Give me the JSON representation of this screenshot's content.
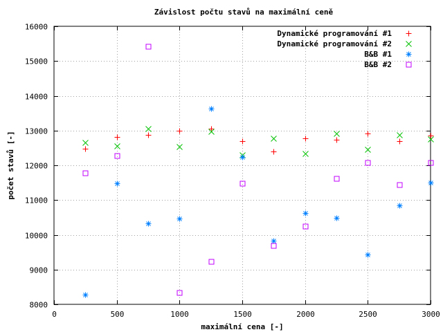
{
  "chart_data": {
    "type": "scatter",
    "title": "Závislost počtu stavů na maximální ceně",
    "xlabel": "maximální cena [-]",
    "ylabel": "počet stavů [-]",
    "xlim": [
      0,
      3000
    ],
    "ylim": [
      8000,
      16000
    ],
    "xticks": [
      0,
      500,
      1000,
      1500,
      2000,
      2500,
      3000
    ],
    "yticks": [
      8000,
      9000,
      10000,
      11000,
      12000,
      13000,
      14000,
      15000,
      16000
    ],
    "grid": true,
    "legend_position": "top-right",
    "series": [
      {
        "name": "Dynamické programování #1",
        "marker": "plus",
        "color": "#ff0000",
        "x": [
          250,
          500,
          750,
          1000,
          1250,
          1500,
          1750,
          2000,
          2250,
          2500,
          2750,
          3000
        ],
        "y": [
          12480,
          12820,
          12880,
          13000,
          13050,
          12700,
          12400,
          12780,
          12740,
          12920,
          12700,
          12850
        ]
      },
      {
        "name": "Dynamické programování #2",
        "marker": "cross",
        "color": "#00c000",
        "x": [
          250,
          500,
          750,
          1000,
          1250,
          1500,
          1750,
          2000,
          2250,
          2500,
          2750,
          3000
        ],
        "y": [
          12650,
          12550,
          13050,
          12540,
          12980,
          12300,
          12780,
          12340,
          12920,
          12460,
          12880,
          12760
        ]
      },
      {
        "name": "B&B #1",
        "marker": "star",
        "color": "#0080ff",
        "x": [
          250,
          500,
          750,
          1000,
          1250,
          1500,
          1750,
          2000,
          2250,
          2500,
          2750,
          3000
        ],
        "y": [
          8270,
          11480,
          10330,
          10460,
          13630,
          12240,
          9830,
          10630,
          10490,
          9430,
          10850,
          11500
        ]
      },
      {
        "name": "B&B #2",
        "marker": "square",
        "color": "#c000ff",
        "x": [
          250,
          500,
          750,
          1000,
          1250,
          1500,
          1750,
          2000,
          2250,
          2500,
          2750,
          3000
        ],
        "y": [
          11780,
          12280,
          15420,
          8340,
          9230,
          11480,
          9700,
          10250,
          11630,
          12070,
          11450,
          12080
        ]
      }
    ]
  }
}
